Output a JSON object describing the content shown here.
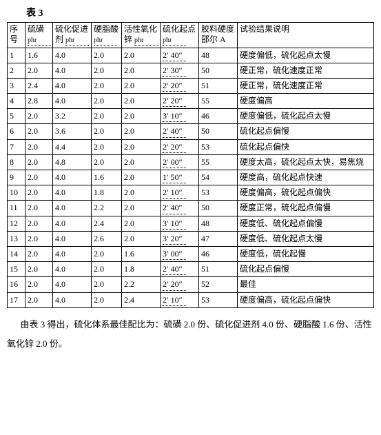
{
  "title": "表 3",
  "headers": {
    "seq": "序号",
    "sulfur": "硫磺",
    "sulfur_unit": "phr",
    "accel": "硫化促进剂",
    "accel_unit": "phr",
    "stearic": "硬脂酸",
    "stearic_unit": "phr",
    "zno": "活性氧化锌",
    "zno_unit": "phr",
    "scorch": "硫化起点",
    "scorch_unit": "phr",
    "hard": "胶料硬度邵尔 A",
    "desc": "试验结果说明"
  },
  "rows": [
    {
      "n": "1",
      "s": "1.6",
      "a": "4.0",
      "st": "2.0",
      "z": "2.0",
      "sp": "2′ 40″",
      "h": "48",
      "d": "硬度偏低，硫化起点太慢"
    },
    {
      "n": "2",
      "s": "2.0",
      "a": "4.0",
      "st": "2.0",
      "z": "2.0",
      "sp": "2′ 30″",
      "h": "50",
      "d": "硬正常，硫化速度正常"
    },
    {
      "n": "3",
      "s": "2.4",
      "a": "4.0",
      "st": "2.0",
      "z": "2.0",
      "sp": "2′ 20″",
      "h": "51",
      "d": "硬正常，硫化速度正常"
    },
    {
      "n": "4",
      "s": "2.8",
      "a": "4.0",
      "st": "2.0",
      "z": "2.0",
      "sp": "2′ 20″",
      "h": "55",
      "d": "硬度偏高"
    },
    {
      "n": "5",
      "s": "2.0",
      "a": "3.2",
      "st": "2.0",
      "z": "2.0",
      "sp": "3′ 10″",
      "h": "46",
      "d": "硬度偏低，硫化起点太慢"
    },
    {
      "n": "6",
      "s": "2.0",
      "a": "3.6",
      "st": "2.0",
      "z": "2.0",
      "sp": "2′ 40″",
      "h": "50",
      "d": "硫化起点偏慢"
    },
    {
      "n": "7",
      "s": "2.0",
      "a": "4.4",
      "st": "2.0",
      "z": "2.0",
      "sp": "2′ 20″",
      "h": "53",
      "d": "硫化起点偏快"
    },
    {
      "n": "8",
      "s": "2.0",
      "a": "4.8",
      "st": "2.0",
      "z": "2.0",
      "sp": "2′ 00″",
      "h": "55",
      "d": "硬度太高，硫化起点太快，易焦烧"
    },
    {
      "n": "9",
      "s": "2.0",
      "a": "4.0",
      "st": "1.6",
      "z": "2.0",
      "sp": "1′ 50″",
      "h": "54",
      "d": "硬度高，硫化起点快速"
    },
    {
      "n": "10",
      "s": "2.0",
      "a": "4.0",
      "st": "1.8",
      "z": "2.0",
      "sp": "2′ 10″",
      "h": "53",
      "d": "硬度偏高，硫化起点偏快"
    },
    {
      "n": "11",
      "s": "2.0",
      "a": "4.0",
      "st": "2.2",
      "z": "2.0",
      "sp": "2′ 40″",
      "h": "50",
      "d": "硬度正常，硫化起点偏慢"
    },
    {
      "n": "12",
      "s": "2.0",
      "a": "4.0",
      "st": "2.4",
      "z": "2.0",
      "sp": "3′ 10″",
      "h": "48",
      "d": "硬度低、硫化起点偏慢"
    },
    {
      "n": "13",
      "s": "2.0",
      "a": "4.0",
      "st": "2.6",
      "z": "2.0",
      "sp": "3′ 20″",
      "h": "47",
      "d": "硬度低、硫化起点太慢"
    },
    {
      "n": "14",
      "s": "2.0",
      "a": "4.0",
      "st": "2.0",
      "z": "1.6",
      "sp": "3′ 00″",
      "h": "46",
      "d": "硬度低，硫化起慢"
    },
    {
      "n": "15",
      "s": "2.0",
      "a": "4.0",
      "st": "2.0",
      "z": "1.8",
      "sp": "2′ 40″",
      "h": "51",
      "d": "硫化起点偏慢"
    },
    {
      "n": "16",
      "s": "2.0",
      "a": "4.0",
      "st": "2.0",
      "z": "2.2",
      "sp": "2′ 20″",
      "h": "52",
      "d": "最佳"
    },
    {
      "n": "17",
      "s": "2.0",
      "a": "4.0",
      "st": "2.0",
      "z": "2.4",
      "sp": "2′ 10″",
      "h": "53",
      "d": "硬度偏高，硫化起点偏快"
    }
  ],
  "conclusion": "由表 3 得出，硫化体系最佳配比为：硫磺 2.0 份、硫化促进剂 4.0 份、硬脂酸 1.6 份、活性氧化锌 2.0 份。"
}
